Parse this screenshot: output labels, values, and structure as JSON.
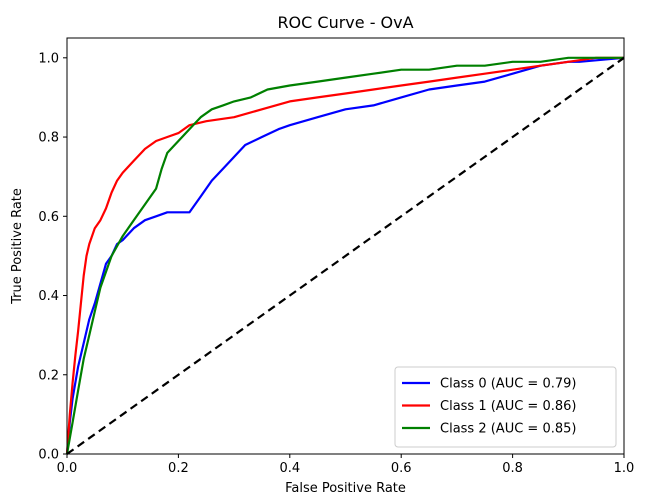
{
  "chart_data": {
    "type": "line",
    "title": "ROC Curve - OvA",
    "xlabel": "False Positive Rate",
    "ylabel": "True Positive Rate",
    "xlim": [
      0.0,
      1.0
    ],
    "ylim": [
      0.0,
      1.05
    ],
    "xticks": [
      "0.0",
      "0.2",
      "0.4",
      "0.6",
      "0.8",
      "1.0"
    ],
    "yticks": [
      "0.0",
      "0.2",
      "0.4",
      "0.6",
      "0.8",
      "1.0"
    ],
    "grid": false,
    "legend_position": "lower right",
    "series": [
      {
        "name": "Class 0 (AUC = 0.79)",
        "color": "#0000ff",
        "x": [
          0.0,
          0.005,
          0.01,
          0.02,
          0.03,
          0.04,
          0.05,
          0.06,
          0.07,
          0.08,
          0.09,
          0.1,
          0.12,
          0.14,
          0.16,
          0.18,
          0.2,
          0.22,
          0.24,
          0.26,
          0.28,
          0.3,
          0.32,
          0.35,
          0.38,
          0.4,
          0.45,
          0.5,
          0.55,
          0.6,
          0.65,
          0.7,
          0.75,
          0.8,
          0.85,
          0.9,
          0.92,
          1.0
        ],
        "y": [
          0.0,
          0.08,
          0.14,
          0.22,
          0.28,
          0.34,
          0.38,
          0.43,
          0.48,
          0.5,
          0.53,
          0.54,
          0.57,
          0.59,
          0.6,
          0.61,
          0.61,
          0.61,
          0.65,
          0.69,
          0.72,
          0.75,
          0.78,
          0.8,
          0.82,
          0.83,
          0.85,
          0.87,
          0.88,
          0.9,
          0.92,
          0.93,
          0.94,
          0.96,
          0.98,
          0.99,
          0.99,
          1.0
        ]
      },
      {
        "name": "Class 1 (AUC = 0.86)",
        "color": "#ff0000",
        "x": [
          0.0,
          0.005,
          0.01,
          0.015,
          0.02,
          0.025,
          0.03,
          0.035,
          0.04,
          0.05,
          0.06,
          0.07,
          0.08,
          0.09,
          0.1,
          0.12,
          0.14,
          0.16,
          0.18,
          0.2,
          0.22,
          0.25,
          0.3,
          0.35,
          0.4,
          0.45,
          0.5,
          0.55,
          0.6,
          0.65,
          0.7,
          0.75,
          0.8,
          0.85,
          0.9,
          0.95,
          1.0
        ],
        "y": [
          0.0,
          0.1,
          0.18,
          0.25,
          0.31,
          0.38,
          0.45,
          0.5,
          0.53,
          0.57,
          0.59,
          0.62,
          0.66,
          0.69,
          0.71,
          0.74,
          0.77,
          0.79,
          0.8,
          0.81,
          0.83,
          0.84,
          0.85,
          0.87,
          0.89,
          0.9,
          0.91,
          0.92,
          0.93,
          0.94,
          0.95,
          0.96,
          0.97,
          0.98,
          0.99,
          1.0,
          1.0
        ]
      },
      {
        "name": "Class 2 (AUC = 0.85)",
        "color": "#008000",
        "x": [
          0.0,
          0.01,
          0.02,
          0.03,
          0.04,
          0.05,
          0.06,
          0.07,
          0.08,
          0.1,
          0.12,
          0.14,
          0.16,
          0.17,
          0.18,
          0.2,
          0.22,
          0.24,
          0.26,
          0.28,
          0.3,
          0.33,
          0.36,
          0.4,
          0.45,
          0.5,
          0.55,
          0.6,
          0.65,
          0.7,
          0.75,
          0.8,
          0.85,
          0.9,
          0.95,
          1.0
        ],
        "y": [
          0.0,
          0.08,
          0.16,
          0.24,
          0.3,
          0.36,
          0.42,
          0.46,
          0.5,
          0.55,
          0.59,
          0.63,
          0.67,
          0.72,
          0.76,
          0.79,
          0.82,
          0.85,
          0.87,
          0.88,
          0.89,
          0.9,
          0.92,
          0.93,
          0.94,
          0.95,
          0.96,
          0.97,
          0.97,
          0.98,
          0.98,
          0.99,
          0.99,
          1.0,
          1.0,
          1.0
        ]
      },
      {
        "name": "",
        "color": "#000000",
        "dashed": true,
        "x": [
          0.0,
          1.0
        ],
        "y": [
          0.0,
          1.0
        ]
      }
    ]
  }
}
